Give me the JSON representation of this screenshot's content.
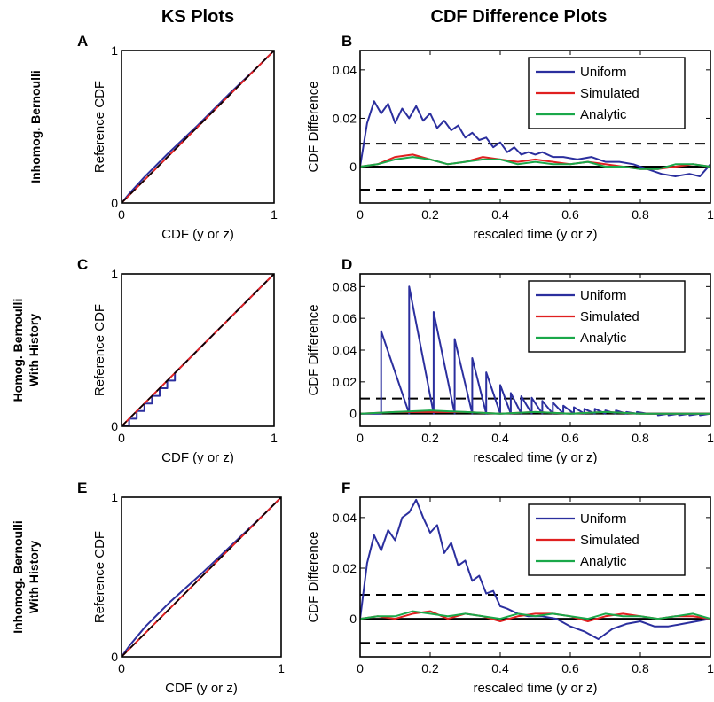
{
  "headers": {
    "ks": "KS Plots",
    "cdf": "CDF Difference Plots"
  },
  "row_labels": [
    [
      "Inhomog. Bernoulli"
    ],
    [
      "Homog. Bernoulli",
      "With History"
    ],
    [
      "Inhomog. Bernoulli",
      "With History"
    ]
  ],
  "colors": {
    "uniform": "#2b2f9e",
    "simulated": "#e02020",
    "analytic": "#1aa84a",
    "reference_dash": "#000000"
  },
  "chart_data": [
    {
      "panel": "A",
      "type": "line",
      "xlabel": "CDF (y or z)",
      "ylabel": "Reference CDF",
      "xlim": [
        0,
        1
      ],
      "ylim": [
        0,
        1
      ],
      "xticks": [
        "0",
        "1"
      ],
      "yticks": [
        "0",
        "1"
      ],
      "series": [
        {
          "color": "uniform",
          "x": [
            0,
            0.05,
            0.15,
            0.3,
            0.5,
            0.7,
            0.9,
            1
          ],
          "y": [
            0,
            0.06,
            0.17,
            0.32,
            0.51,
            0.71,
            0.9,
            1
          ]
        },
        {
          "color": "simulated",
          "x": [
            0,
            1
          ],
          "y": [
            0,
            1
          ]
        },
        {
          "color": "reference_dash",
          "dashed": true,
          "x": [
            0,
            1
          ],
          "y": [
            0,
            1
          ]
        }
      ]
    },
    {
      "panel": "B",
      "type": "line",
      "xlabel": "rescaled time (y or z)",
      "ylabel": "CDF Difference",
      "xlim": [
        0,
        1
      ],
      "ylim": [
        -0.015,
        0.048
      ],
      "xticks": [
        "0",
        "0.2",
        "0.4",
        "0.6",
        "0.8",
        "1"
      ],
      "yticks": [
        "0",
        "0.02",
        "0.04"
      ],
      "ytick_values": [
        0,
        0.02,
        0.04
      ],
      "conf_bound": 0.0095,
      "legend": [
        "Uniform",
        "Simulated",
        "Analytic"
      ],
      "series": [
        {
          "name": "Uniform",
          "color": "uniform",
          "x": [
            0,
            0.02,
            0.04,
            0.06,
            0.08,
            0.1,
            0.12,
            0.14,
            0.16,
            0.18,
            0.2,
            0.22,
            0.24,
            0.26,
            0.28,
            0.3,
            0.32,
            0.34,
            0.36,
            0.38,
            0.4,
            0.42,
            0.44,
            0.46,
            0.48,
            0.5,
            0.52,
            0.55,
            0.58,
            0.62,
            0.66,
            0.7,
            0.74,
            0.78,
            0.82,
            0.86,
            0.9,
            0.94,
            0.97,
            1
          ],
          "y": [
            0,
            0.018,
            0.027,
            0.022,
            0.026,
            0.018,
            0.024,
            0.02,
            0.025,
            0.019,
            0.022,
            0.016,
            0.019,
            0.015,
            0.017,
            0.012,
            0.014,
            0.011,
            0.012,
            0.008,
            0.01,
            0.006,
            0.008,
            0.005,
            0.006,
            0.005,
            0.006,
            0.004,
            0.004,
            0.003,
            0.004,
            0.002,
            0.002,
            0.001,
            -0.001,
            -0.003,
            -0.004,
            -0.003,
            -0.004,
            0.001
          ]
        },
        {
          "name": "Simulated",
          "color": "simulated",
          "x": [
            0,
            0.05,
            0.1,
            0.15,
            0.2,
            0.25,
            0.3,
            0.35,
            0.4,
            0.45,
            0.5,
            0.55,
            0.6,
            0.65,
            0.7,
            0.75,
            0.8,
            0.85,
            0.9,
            0.95,
            1
          ],
          "y": [
            0,
            0.001,
            0.004,
            0.005,
            0.003,
            0.001,
            0.002,
            0.004,
            0.003,
            0.002,
            0.003,
            0.002,
            0.001,
            0.002,
            0.001,
            0,
            -0.001,
            -0.001,
            0,
            0.001,
            0
          ]
        },
        {
          "name": "Analytic",
          "color": "analytic",
          "x": [
            0,
            0.05,
            0.1,
            0.15,
            0.2,
            0.25,
            0.3,
            0.35,
            0.4,
            0.45,
            0.5,
            0.55,
            0.6,
            0.65,
            0.7,
            0.75,
            0.8,
            0.85,
            0.9,
            0.95,
            1
          ],
          "y": [
            0,
            0.001,
            0.003,
            0.004,
            0.003,
            0.001,
            0.002,
            0.003,
            0.003,
            0.001,
            0.002,
            0.001,
            0.001,
            0.002,
            0,
            0,
            -0.001,
            -0.001,
            0.001,
            0.001,
            0
          ]
        }
      ]
    },
    {
      "panel": "C",
      "type": "line",
      "xlabel": "CDF (y or z)",
      "ylabel": "Reference CDF",
      "xlim": [
        0,
        1
      ],
      "ylim": [
        0,
        1
      ],
      "xticks": [
        "0",
        "1"
      ],
      "yticks": [
        "0",
        "1"
      ],
      "series": [
        {
          "color": "uniform",
          "x": [
            0,
            0.05,
            0.05,
            0.1,
            0.1,
            0.15,
            0.15,
            0.2,
            0.2,
            0.25,
            0.25,
            0.3,
            0.3,
            0.35,
            0.35,
            0.5,
            0.75,
            1
          ],
          "y": [
            0,
            0,
            0.05,
            0.05,
            0.1,
            0.1,
            0.15,
            0.15,
            0.2,
            0.2,
            0.25,
            0.25,
            0.3,
            0.3,
            0.35,
            0.5,
            0.75,
            1
          ]
        },
        {
          "color": "simulated",
          "x": [
            0,
            1
          ],
          "y": [
            0,
            1
          ]
        },
        {
          "color": "reference_dash",
          "dashed": true,
          "x": [
            0,
            1
          ],
          "y": [
            0,
            1
          ]
        }
      ]
    },
    {
      "panel": "D",
      "type": "line",
      "xlabel": "rescaled time (y or z)",
      "ylabel": "CDF Difference",
      "xlim": [
        0,
        1
      ],
      "ylim": [
        -0.008,
        0.088
      ],
      "xticks": [
        "0",
        "0.2",
        "0.4",
        "0.6",
        "0.8",
        "1"
      ],
      "yticks": [
        "0",
        "0.02",
        "0.04",
        "0.06",
        "0.08"
      ],
      "ytick_values": [
        0,
        0.02,
        0.04,
        0.06,
        0.08
      ],
      "conf_bound": 0.0095,
      "legend": [
        "Uniform",
        "Simulated",
        "Analytic"
      ],
      "series": [
        {
          "name": "Uniform",
          "color": "uniform",
          "sawtooth": true,
          "x": [
            0,
            0.06,
            0.14,
            0.21,
            0.27,
            0.32,
            0.36,
            0.4,
            0.43,
            0.46,
            0.49,
            0.52,
            0.55,
            0.58,
            0.61,
            0.64,
            0.67,
            0.7,
            0.73,
            0.76,
            0.79,
            0.82,
            0.85,
            0.88,
            0.91,
            0.94,
            0.97,
            1
          ],
          "y": [
            0,
            0.052,
            0.08,
            0.064,
            0.047,
            0.035,
            0.026,
            0.018,
            0.013,
            0.011,
            0.01,
            0.008,
            0.007,
            0.005,
            0.004,
            0.003,
            0.003,
            0.002,
            0.002,
            0.001,
            0.001,
            0,
            -0.001,
            -0.001,
            -0.001,
            -0.001,
            -0.001,
            0
          ]
        },
        {
          "name": "Simulated",
          "color": "simulated",
          "x": [
            0,
            0.1,
            0.2,
            0.3,
            0.4,
            0.5,
            0.6,
            0.7,
            0.8,
            0.9,
            1
          ],
          "y": [
            0,
            0.001,
            0.001,
            0.001,
            0,
            0.001,
            0,
            0.001,
            0,
            0,
            0
          ]
        },
        {
          "name": "Analytic",
          "color": "analytic",
          "x": [
            0,
            0.1,
            0.2,
            0.3,
            0.4,
            0.5,
            0.6,
            0.7,
            0.8,
            0.9,
            1
          ],
          "y": [
            0,
            0.001,
            0.002,
            0.001,
            0,
            0.001,
            0,
            0.001,
            0,
            0,
            0
          ]
        }
      ]
    },
    {
      "panel": "E",
      "type": "line",
      "xlabel": "CDF (y or z)",
      "ylabel": "Reference CDF",
      "xlim": [
        0,
        1
      ],
      "ylim": [
        0,
        1
      ],
      "xticks": [
        "0",
        "1"
      ],
      "yticks": [
        "0",
        "1"
      ],
      "series": [
        {
          "color": "uniform",
          "x": [
            0,
            0.05,
            0.15,
            0.3,
            0.5,
            0.7,
            0.9,
            1
          ],
          "y": [
            0,
            0.07,
            0.19,
            0.34,
            0.52,
            0.71,
            0.9,
            1
          ]
        },
        {
          "color": "simulated",
          "x": [
            0,
            1
          ],
          "y": [
            0,
            1
          ]
        },
        {
          "color": "reference_dash",
          "dashed": true,
          "x": [
            0,
            1
          ],
          "y": [
            0,
            1
          ]
        }
      ]
    },
    {
      "panel": "F",
      "type": "line",
      "xlabel": "rescaled time (y or z)",
      "ylabel": "CDF Difference",
      "xlim": [
        0,
        1
      ],
      "ylim": [
        -0.015,
        0.048
      ],
      "xticks": [
        "0",
        "0.2",
        "0.4",
        "0.6",
        "0.8",
        "1"
      ],
      "yticks": [
        "0",
        "0.02",
        "0.04"
      ],
      "ytick_values": [
        0,
        0.02,
        0.04
      ],
      "conf_bound": 0.0095,
      "legend": [
        "Uniform",
        "Simulated",
        "Analytic"
      ],
      "series": [
        {
          "name": "Uniform",
          "color": "uniform",
          "x": [
            0,
            0.02,
            0.04,
            0.06,
            0.08,
            0.1,
            0.12,
            0.14,
            0.16,
            0.18,
            0.2,
            0.22,
            0.24,
            0.26,
            0.28,
            0.3,
            0.32,
            0.34,
            0.36,
            0.38,
            0.4,
            0.42,
            0.45,
            0.48,
            0.52,
            0.56,
            0.6,
            0.64,
            0.68,
            0.72,
            0.76,
            0.8,
            0.84,
            0.88,
            0.92,
            0.96,
            1
          ],
          "y": [
            0,
            0.022,
            0.033,
            0.027,
            0.035,
            0.031,
            0.04,
            0.042,
            0.047,
            0.04,
            0.034,
            0.037,
            0.026,
            0.03,
            0.021,
            0.023,
            0.015,
            0.017,
            0.01,
            0.011,
            0.005,
            0.004,
            0.002,
            0.001,
            0.001,
            0,
            -0.003,
            -0.005,
            -0.008,
            -0.004,
            -0.002,
            -0.001,
            -0.003,
            -0.003,
            -0.002,
            -0.001,
            0
          ]
        },
        {
          "name": "Simulated",
          "color": "simulated",
          "x": [
            0,
            0.05,
            0.1,
            0.15,
            0.2,
            0.25,
            0.3,
            0.35,
            0.4,
            0.45,
            0.5,
            0.55,
            0.6,
            0.65,
            0.7,
            0.75,
            0.8,
            0.85,
            0.9,
            0.95,
            1
          ],
          "y": [
            0,
            0.001,
            0,
            0.002,
            0.003,
            0,
            0.002,
            0.001,
            -0.001,
            0.001,
            0.002,
            0.002,
            0.001,
            -0.001,
            0.001,
            0.002,
            0.001,
            0,
            0.001,
            0.001,
            0
          ]
        },
        {
          "name": "Analytic",
          "color": "analytic",
          "x": [
            0,
            0.05,
            0.1,
            0.15,
            0.2,
            0.25,
            0.3,
            0.35,
            0.4,
            0.45,
            0.5,
            0.55,
            0.6,
            0.65,
            0.7,
            0.75,
            0.8,
            0.85,
            0.9,
            0.95,
            1
          ],
          "y": [
            0,
            0.001,
            0.001,
            0.003,
            0.002,
            0.001,
            0.002,
            0.001,
            0,
            0.002,
            0.001,
            0.002,
            0.001,
            0,
            0.002,
            0.001,
            0.001,
            0,
            0.001,
            0.002,
            0
          ]
        }
      ]
    }
  ]
}
